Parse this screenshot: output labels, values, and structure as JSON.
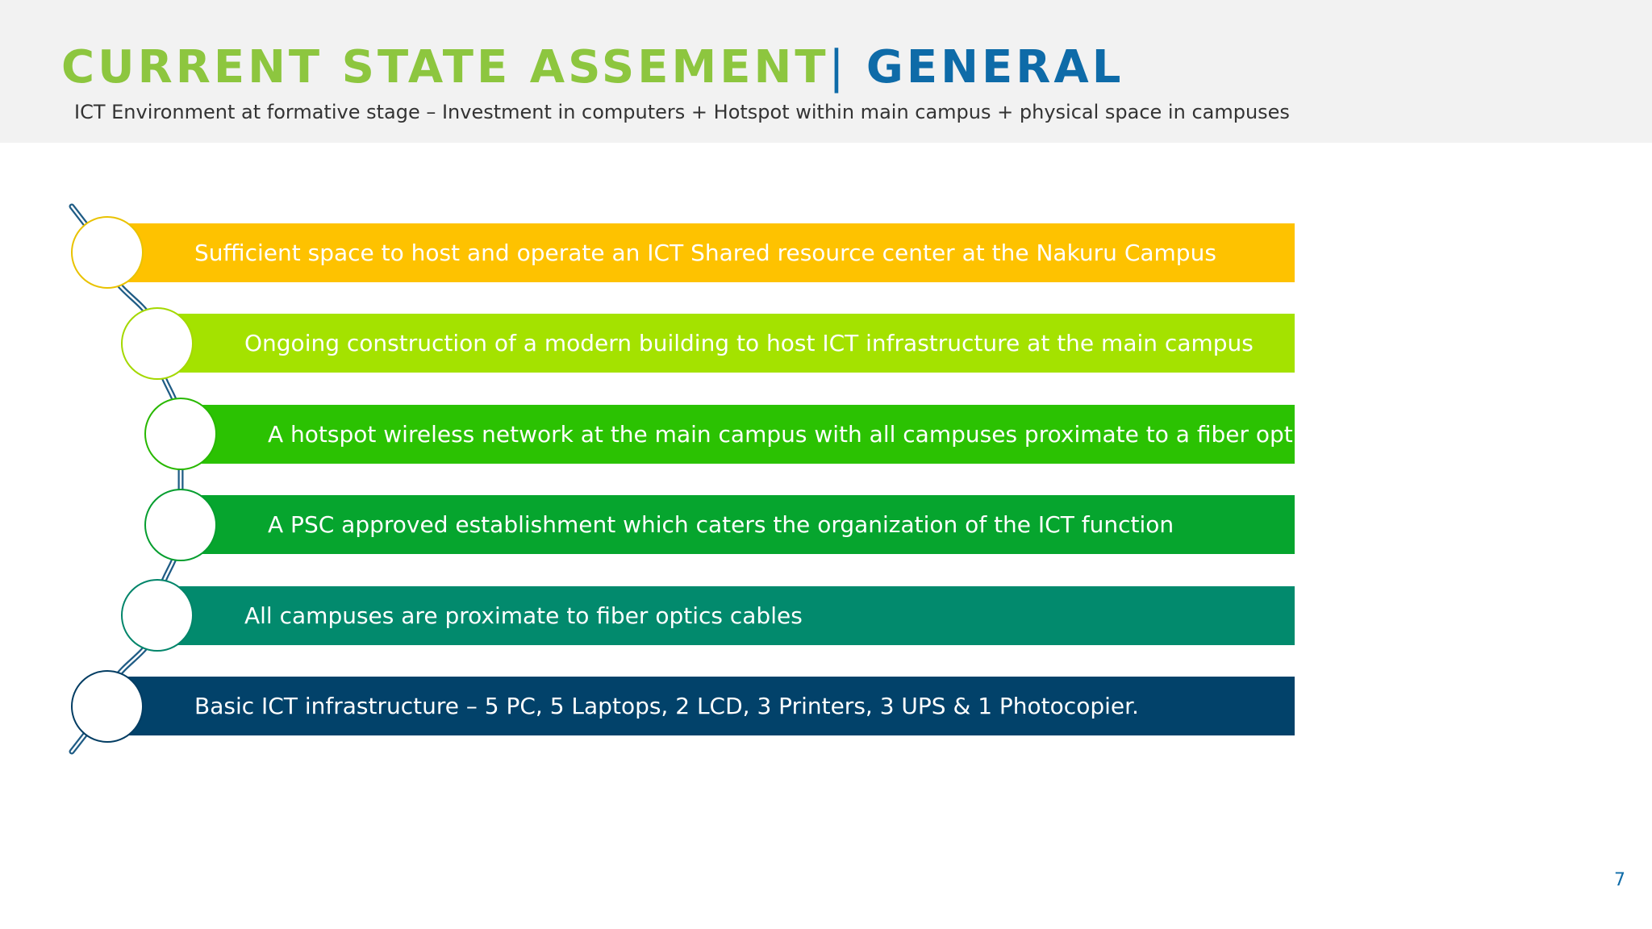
{
  "header": {
    "title_main": "CURRENT STATE ASSEMENT",
    "title_separator": "|",
    "title_section": "GENERAL",
    "subtitle": "ICT Environment at formative stage – Investment in computers + Hotspot within main campus + physical space in campuses"
  },
  "items": [
    {
      "text": "Sufficient space to host and operate an ICT Shared resource center at the Nakuru Campus",
      "color": "#fec200",
      "ring": "#e9c200"
    },
    {
      "text": "Ongoing construction of a modern building to host ICT infrastructure at the main campus",
      "color": "#a4e200",
      "ring": "#a4d800"
    },
    {
      "text": "A hotspot wireless network at the main campus with all campuses proximate to a fiber optic cable",
      "color": "#2bc202",
      "ring": "#28b800"
    },
    {
      "text": "A PSC approved establishment which caters the organization of the ICT function",
      "color": "#06a52e",
      "ring": "#069e2f"
    },
    {
      "text": "All campuses are proximate to fiber optics cables",
      "color": "#028a6d",
      "ring": "#02856a"
    },
    {
      "text": "Basic ICT infrastructure – 5 PC, 5 Laptops, 2 LCD, 3 Printers, 3 UPS & 1 Photocopier.",
      "color": "#02426a",
      "ring": "#033d63"
    }
  ],
  "connector_color": "#1f5c85",
  "page_number": "7"
}
